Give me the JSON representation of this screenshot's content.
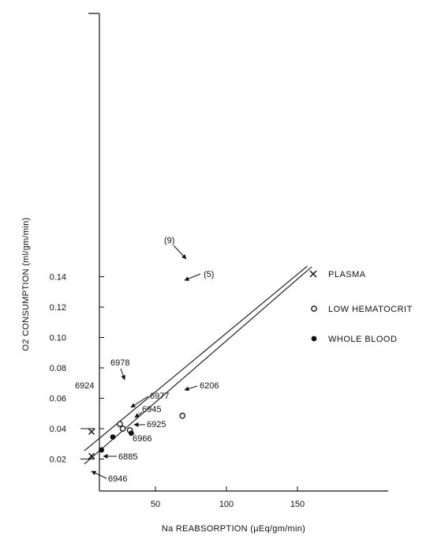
{
  "chart_data": {
    "type": "scatter",
    "title": "",
    "xlabel": "Na REABSORPTION (µEq/gm/min)",
    "ylabel": "O2 CONSUMPTION (ml/gm/min)",
    "xlim": [
      0,
      210
    ],
    "ylim": [
      0,
      0.155
    ],
    "x_ticks": [
      "50",
      "100",
      "150"
    ],
    "x_tick_values": [
      50,
      100,
      150
    ],
    "y_ticks": [
      "0.02",
      "0.04",
      "0.06",
      "0.08",
      "0.10",
      "0.12",
      "0.14"
    ],
    "y_tick_values": [
      0.02,
      0.04,
      0.06,
      0.08,
      0.1,
      0.12,
      0.14
    ],
    "grid": false,
    "legend_position": "right",
    "legend": [
      {
        "marker": "x",
        "label": "PLASMA"
      },
      {
        "marker": "open-circle",
        "label": "LOW HEMATOCRIT"
      },
      {
        "marker": "filled-circle",
        "label": "WHOLE BLOOD"
      }
    ],
    "lines": [
      {
        "name": "(9)",
        "x": [
          0,
          157
        ],
        "y": [
          0.0255,
          0.147
        ]
      },
      {
        "name": "(5)",
        "x": [
          0,
          160
        ],
        "y": [
          0.0168,
          0.1465
        ]
      }
    ],
    "points": [
      {
        "id": "6924",
        "group": "PLASMA",
        "x": 5,
        "y": 0.038
      },
      {
        "id": "6946",
        "group": "PLASMA",
        "x": 5,
        "y": 0.022
      },
      {
        "id": "6978",
        "group": "LOW HEMATOCRIT",
        "x": 25,
        "y": 0.043
      },
      {
        "id": "6945",
        "group": "LOW HEMATOCRIT",
        "x": 27,
        "y": 0.04
      },
      {
        "id": "6977",
        "group": "LOW HEMATOCRIT",
        "x": 32,
        "y": 0.039
      },
      {
        "id": "6206",
        "group": "LOW HEMATOCRIT",
        "x": 69,
        "y": 0.0485
      },
      {
        "id": "6925",
        "group": "WHOLE BLOOD",
        "x": 33,
        "y": 0.037
      },
      {
        "id": "6966",
        "group": "WHOLE BLOOD",
        "x": 20,
        "y": 0.0345
      },
      {
        "id": "6885",
        "group": "WHOLE BLOOD",
        "x": 12,
        "y": 0.026
      }
    ]
  }
}
